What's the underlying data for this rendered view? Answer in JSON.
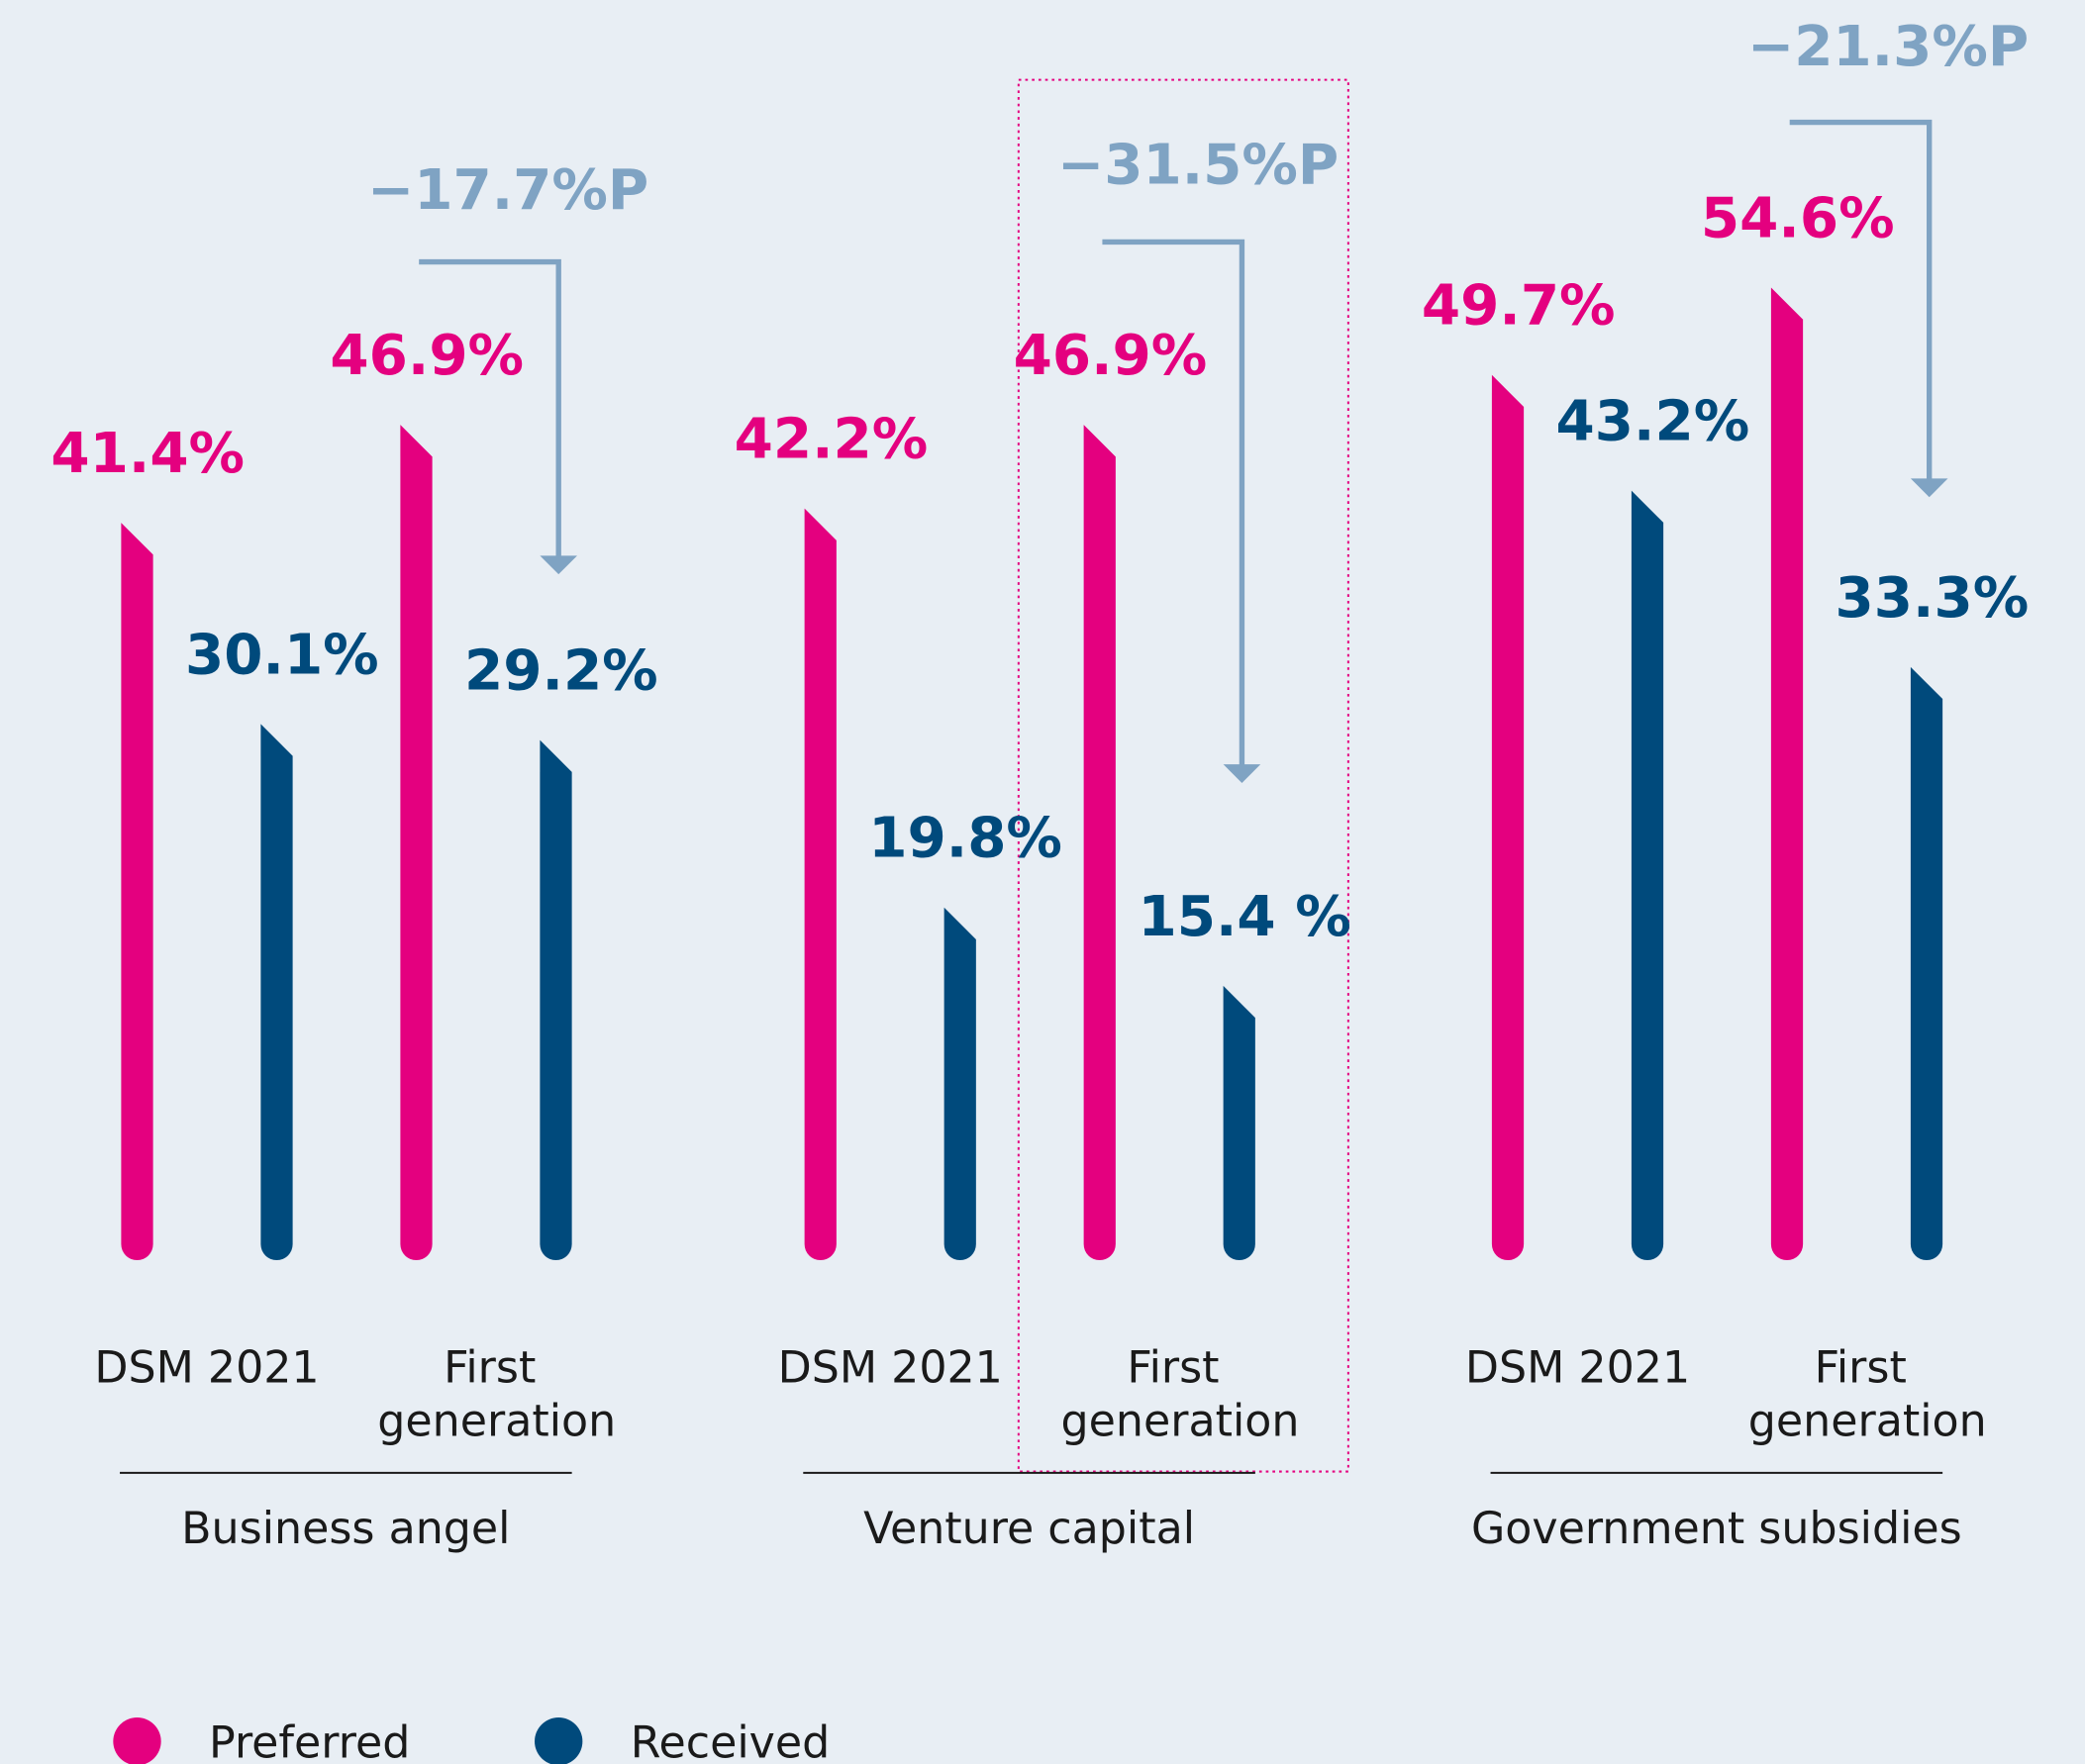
{
  "chart_data": {
    "type": "bar",
    "groups": [
      "Business angel",
      "Venture capital",
      "Government subsidies"
    ],
    "categories": [
      "DSM 2021",
      "First generation",
      "DSM 2021",
      "First generation",
      "DSM 2021",
      "First generation"
    ],
    "series": [
      {
        "name": "Preferred",
        "color": "#e4007f",
        "values": [
          41.4,
          46.9,
          42.2,
          46.9,
          49.7,
          54.6
        ],
        "value_labels": [
          "41.4%",
          "46.9%",
          "42.2%",
          "46.9%",
          "49.7%",
          "54.6%"
        ]
      },
      {
        "name": "Received",
        "color": "#004a7c",
        "values": [
          30.1,
          29.2,
          19.8,
          15.4,
          43.2,
          33.3
        ],
        "value_labels": [
          "30.1%",
          "29.2%",
          "19.8%",
          "15.4 %",
          "43.2%",
          "33.3%"
        ]
      }
    ],
    "annotations": [
      "−17.7%P",
      "−31.5%P",
      "−21.3%P"
    ],
    "ylim": [
      0,
      70
    ]
  }
}
